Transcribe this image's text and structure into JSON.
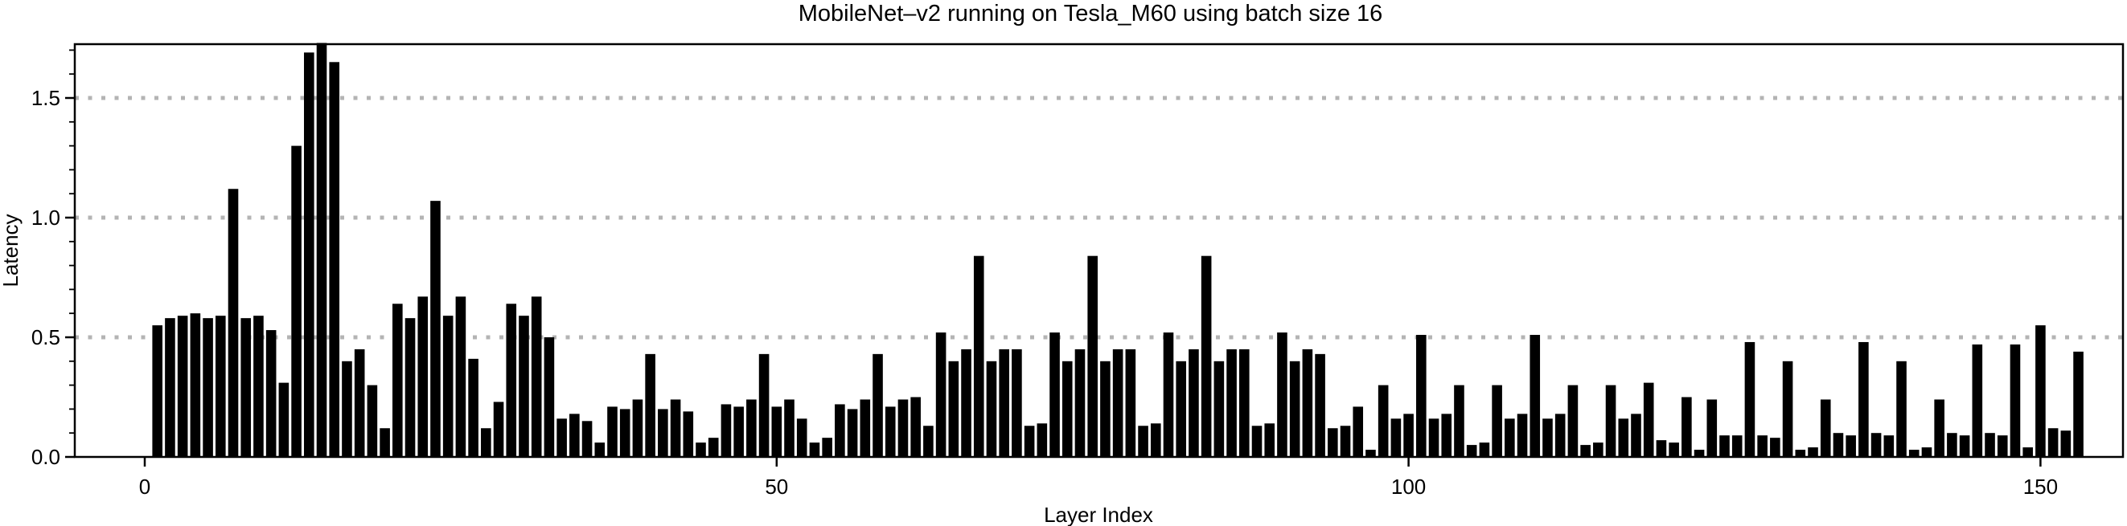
{
  "chart_data": {
    "type": "bar",
    "title": "MobileNet–v2 running on Tesla_M60 using batch size 16",
    "xlabel": "Layer Index",
    "ylabel": "Latency",
    "bar_color": "#000000",
    "grid_color": "#b4b4b4",
    "axis_color": "#000000",
    "grid_style": "dotted horizontal lines at each major y tick",
    "legend": "none",
    "x_first_layer_index": 1,
    "xticks": [
      0,
      50,
      100,
      150
    ],
    "ytick_labels": [
      "0.0",
      "0.5",
      "1.0",
      "1.5"
    ],
    "ytick_values": [
      0,
      0.5,
      1.0,
      1.5
    ],
    "y_minor_step": 0.1,
    "xlim": [
      -5.5,
      156.5
    ],
    "ylim": [
      0,
      1.725
    ],
    "values": [
      0.55,
      0.58,
      0.59,
      0.6,
      0.58,
      0.59,
      1.12,
      0.58,
      0.59,
      0.53,
      0.31,
      1.3,
      1.69,
      1.73,
      1.65,
      0.4,
      0.45,
      0.3,
      0.12,
      0.64,
      0.58,
      0.67,
      1.07,
      0.59,
      0.67,
      0.41,
      0.12,
      0.23,
      0.64,
      0.59,
      0.67,
      0.5,
      0.16,
      0.18,
      0.15,
      0.06,
      0.21,
      0.2,
      0.24,
      0.43,
      0.2,
      0.24,
      0.19,
      0.06,
      0.08,
      0.22,
      0.21,
      0.24,
      0.43,
      0.21,
      0.24,
      0.16,
      0.06,
      0.08,
      0.22,
      0.2,
      0.24,
      0.43,
      0.21,
      0.24,
      0.25,
      0.13,
      0.52,
      0.4,
      0.45,
      0.84,
      0.4,
      0.45,
      0.45,
      0.13,
      0.14,
      0.52,
      0.4,
      0.45,
      0.84,
      0.4,
      0.45,
      0.45,
      0.13,
      0.14,
      0.52,
      0.4,
      0.45,
      0.84,
      0.4,
      0.45,
      0.45,
      0.13,
      0.14,
      0.52,
      0.4,
      0.45,
      0.43,
      0.12,
      0.13,
      0.21,
      0.03,
      0.3,
      0.16,
      0.18,
      0.51,
      0.16,
      0.18,
      0.3,
      0.05,
      0.06,
      0.3,
      0.16,
      0.18,
      0.51,
      0.16,
      0.18,
      0.3,
      0.05,
      0.06,
      0.3,
      0.16,
      0.18,
      0.31,
      0.07,
      0.06,
      0.25,
      0.03,
      0.24,
      0.09,
      0.09,
      0.48,
      0.09,
      0.08,
      0.4,
      0.03,
      0.04,
      0.24,
      0.1,
      0.09,
      0.48,
      0.1,
      0.09,
      0.4,
      0.03,
      0.04,
      0.24,
      0.1,
      0.09,
      0.47,
      0.1,
      0.09,
      0.47,
      0.04,
      0.55,
      0.12,
      0.11,
      0.44
    ]
  }
}
